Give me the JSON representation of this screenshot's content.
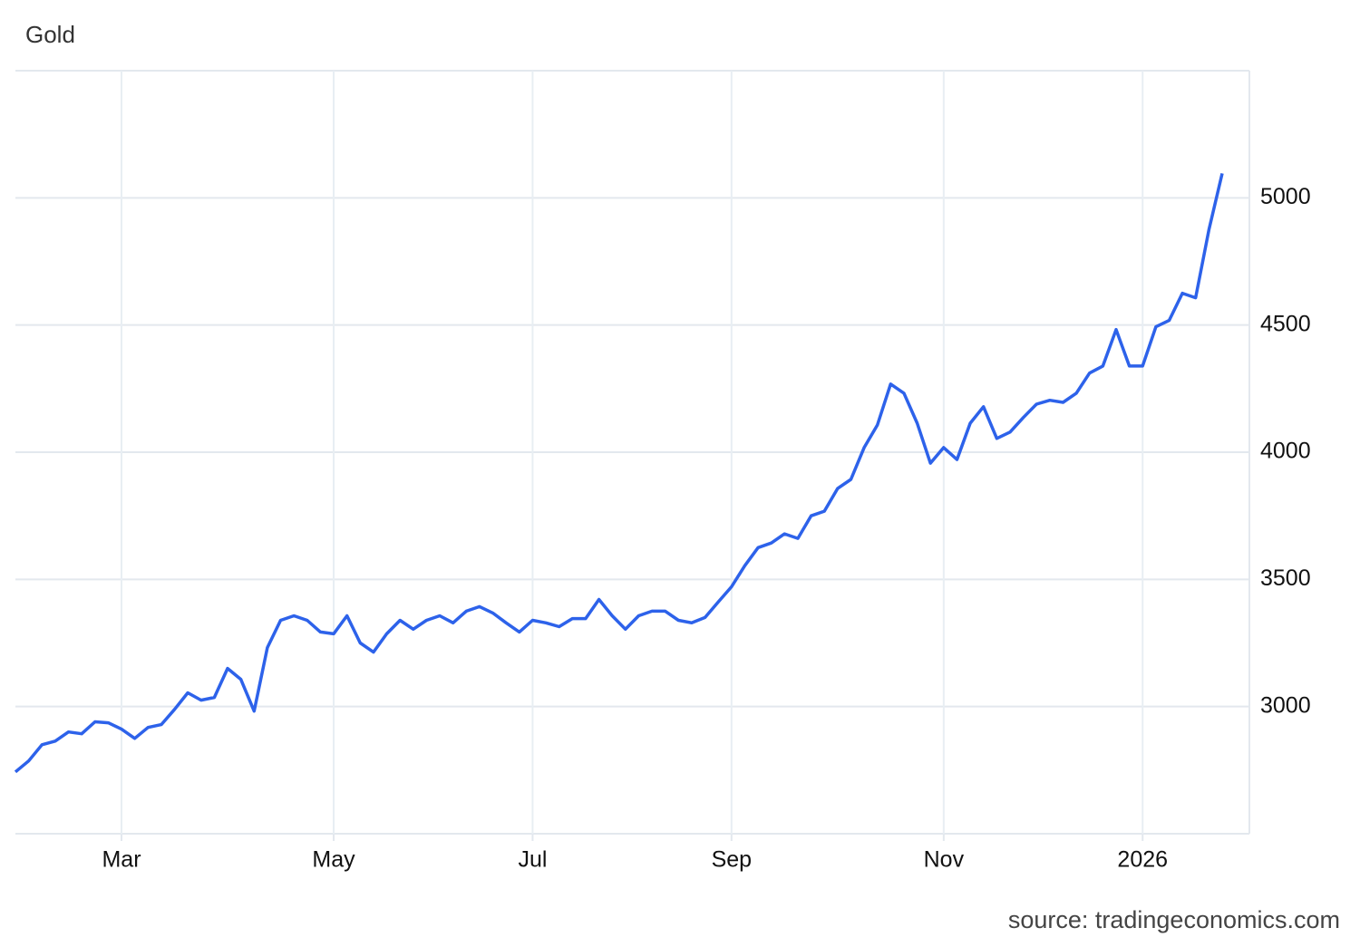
{
  "chart_data": {
    "type": "line",
    "title": "Gold",
    "source": "source: tradingeconomics.com",
    "categories": [
      null,
      null,
      null,
      null,
      null,
      null,
      null,
      null,
      "Mar",
      null,
      null,
      null,
      null,
      null,
      null,
      null,
      null,
      null,
      null,
      null,
      null,
      null,
      null,
      null,
      "May",
      null,
      null,
      null,
      null,
      null,
      null,
      null,
      null,
      null,
      null,
      null,
      null,
      null,
      null,
      "Jul",
      null,
      null,
      null,
      null,
      null,
      null,
      null,
      null,
      null,
      null,
      null,
      null,
      null,
      null,
      "Sep",
      null,
      null,
      null,
      null,
      null,
      null,
      null,
      null,
      null,
      null,
      null,
      null,
      null,
      null,
      null,
      "Nov",
      null,
      null,
      null,
      null,
      null,
      null,
      null,
      null,
      null,
      null,
      null,
      null,
      null,
      null,
      "2026",
      null,
      null,
      null,
      null,
      null,
      null
    ],
    "values": [
      2743,
      2786,
      2850,
      2864,
      2900,
      2893,
      2940,
      2936,
      2911,
      2875,
      2918,
      2929,
      2989,
      3054,
      3025,
      3036,
      3150,
      3107,
      2982,
      3232,
      3339,
      3357,
      3339,
      3293,
      3286,
      3357,
      3250,
      3214,
      3286,
      3339,
      3304,
      3339,
      3357,
      3329,
      3375,
      3393,
      3368,
      3329,
      3293,
      3339,
      3329,
      3314,
      3346,
      3346,
      3421,
      3357,
      3304,
      3357,
      3375,
      3375,
      3339,
      3329,
      3350,
      3411,
      3471,
      3554,
      3625,
      3643,
      3679,
      3661,
      3750,
      3768,
      3857,
      3893,
      4018,
      4107,
      4268,
      4232,
      4114,
      3957,
      4018,
      3971,
      4114,
      4179,
      4054,
      4079,
      4136,
      4189,
      4204,
      4196,
      4232,
      4311,
      4339,
      4482,
      4339,
      4339,
      4493,
      4518,
      4625,
      4607,
      4875,
      5096
    ],
    "color": "#2d62ea",
    "ylim": [
      2500,
      5500
    ],
    "yticks": [
      3000,
      3500,
      4000,
      4500,
      5000
    ],
    "grid": true,
    "y_axis_side": "right"
  }
}
